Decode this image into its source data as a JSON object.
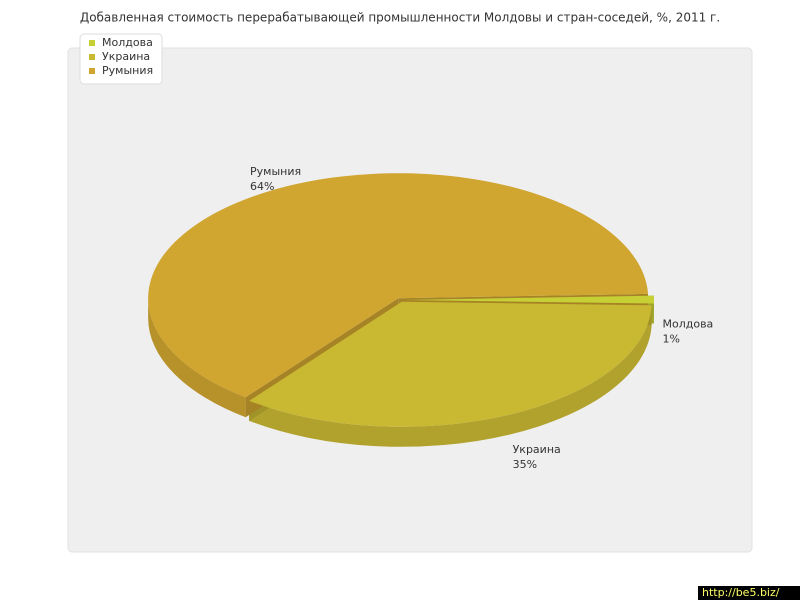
{
  "chart_data": {
    "type": "pie",
    "title": "Добавленная стоимость перерабатывающей промышленности Молдовы и стран-соседей, %, 2011 г.",
    "categories": [
      "Молдова",
      "Украина",
      "Румыния"
    ],
    "values": [
      1,
      35,
      64
    ],
    "value_labels": [
      "1%",
      "35%",
      "64%"
    ],
    "colors": [
      "#c6d035",
      "#c8b832",
      "#d0a530"
    ],
    "legend": "top-left"
  },
  "watermark": "http://be5.biz/"
}
